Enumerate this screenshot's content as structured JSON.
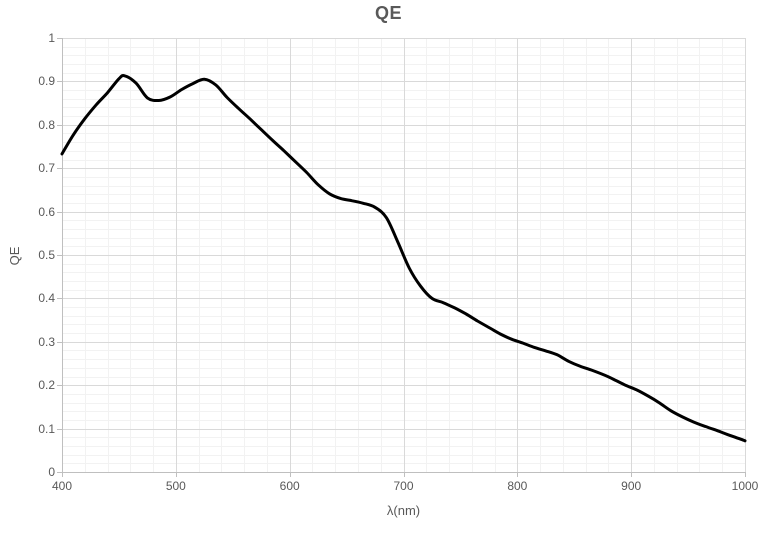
{
  "chart_data": {
    "type": "line",
    "title": "QE",
    "xlabel": "λ(nm)",
    "ylabel": "QE",
    "series_name": "QE",
    "xlim": [
      400,
      1000
    ],
    "ylim": [
      0,
      1
    ],
    "x_major_ticks": [
      400,
      500,
      600,
      700,
      800,
      900,
      1000
    ],
    "x_tick_labels": [
      "400",
      "500",
      "600",
      "700",
      "800",
      "900",
      "1000"
    ],
    "y_major_ticks": [
      0,
      0.1,
      0.2,
      0.3,
      0.4,
      0.5,
      0.6,
      0.7,
      0.8,
      0.9,
      1
    ],
    "y_tick_labels": [
      "0",
      "0.1",
      "0.2",
      "0.3",
      "0.4",
      "0.5",
      "0.6",
      "0.7",
      "0.8",
      "0.9",
      "1"
    ],
    "x_minor_step": 20,
    "y_minor_step": 0.02,
    "grid": "major+minor",
    "legend": "none",
    "x": [
      400,
      410,
      420,
      430,
      440,
      450,
      455,
      465,
      475,
      485,
      495,
      505,
      515,
      525,
      535,
      545,
      555,
      565,
      575,
      585,
      595,
      605,
      615,
      625,
      635,
      645,
      655,
      665,
      675,
      685,
      695,
      705,
      715,
      725,
      735,
      745,
      755,
      765,
      775,
      785,
      795,
      805,
      815,
      825,
      835,
      845,
      855,
      865,
      875,
      885,
      895,
      905,
      915,
      925,
      935,
      945,
      955,
      965,
      975,
      985,
      1000
    ],
    "y": [
      0.733,
      0.777,
      0.814,
      0.846,
      0.874,
      0.906,
      0.913,
      0.896,
      0.862,
      0.856,
      0.864,
      0.881,
      0.895,
      0.905,
      0.892,
      0.863,
      0.838,
      0.814,
      0.789,
      0.764,
      0.74,
      0.715,
      0.69,
      0.662,
      0.641,
      0.63,
      0.625,
      0.619,
      0.61,
      0.586,
      0.53,
      0.47,
      0.428,
      0.4,
      0.39,
      0.378,
      0.364,
      0.348,
      0.333,
      0.318,
      0.306,
      0.297,
      0.287,
      0.279,
      0.27,
      0.255,
      0.244,
      0.235,
      0.225,
      0.213,
      0.2,
      0.189,
      0.175,
      0.159,
      0.141,
      0.127,
      0.115,
      0.105,
      0.096,
      0.086,
      0.072
    ]
  },
  "colors": {
    "background": "#ffffff",
    "major_grid": "#d9d9d9",
    "minor_grid": "#f2f2f2",
    "axis_line": "#bfbfbf",
    "text": "#595959",
    "line": "#000000"
  },
  "line_width": 3
}
